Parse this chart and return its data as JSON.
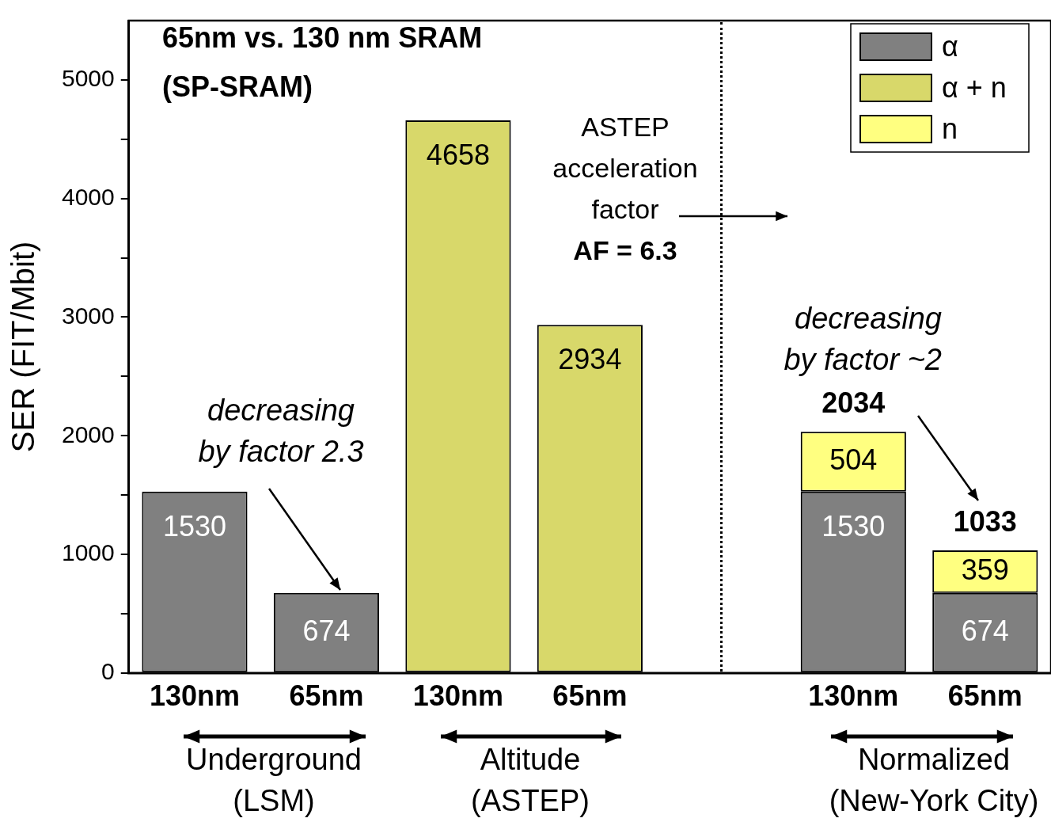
{
  "chart_data": {
    "type": "bar",
    "stacked": true,
    "title": "65nm vs. 130 nm SRAM",
    "subtitle": "(SP-SRAM)",
    "ylabel": "SER (FIT/Mbit)",
    "categories": [
      "130nm",
      "65nm",
      "130nm",
      "65nm",
      null,
      "130nm",
      "65nm"
    ],
    "series": [
      {
        "name": "α",
        "color": "#808080",
        "values": [
          1530,
          674,
          null,
          null,
          null,
          1530,
          674
        ]
      },
      {
        "name": "α + n",
        "color": "#d8d86a",
        "values": [
          null,
          null,
          4658,
          2934,
          null,
          null,
          null
        ]
      },
      {
        "name": "n",
        "color": "#ffff80",
        "values": [
          null,
          null,
          null,
          null,
          null,
          504,
          359
        ]
      }
    ],
    "totals": [
      null,
      null,
      null,
      null,
      null,
      "2034",
      "1033"
    ],
    "data_labels": true,
    "ylim": [
      0,
      5500
    ],
    "yticks": [
      0,
      {
        "value": 500,
        "label": null
      },
      1000,
      {
        "value": 1500,
        "label": null
      },
      2000,
      {
        "value": 2500,
        "label": null
      },
      3000,
      {
        "value": 3500,
        "label": null
      },
      4000,
      {
        "value": 4500,
        "label": null
      },
      5000
    ],
    "legend": "top right",
    "annotations": [
      "ASTEP\nacceleration\nfactor\nAF = 6.3",
      "decreasing\nby factor 2.3",
      "decreasing\nby factor ~2",
      "Underground\n(LSM)",
      "Altitude\n(ASTEP)",
      "Normalized\n(New-York City)"
    ]
  }
}
